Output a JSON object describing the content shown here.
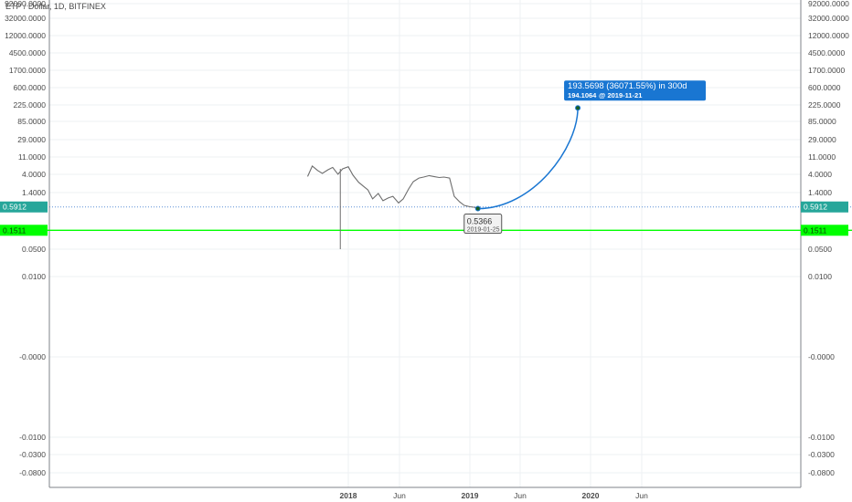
{
  "header": {
    "title": "ETP / Dollar, 1D, BITFINEX"
  },
  "chart_data": {
    "type": "line",
    "title": "ETP / Dollar, 1D, BITFINEX",
    "y_scale": "log",
    "y_tick_labels": [
      "92000.0000",
      "32000.0000",
      "12000.0000",
      "4500.0000",
      "1700.0000",
      "600.0000",
      "225.0000",
      "85.0000",
      "29.0000",
      "11.0000",
      "4.0000",
      "1.4000",
      "0.0500",
      "0.0100",
      "-0.0000",
      "-0.0100",
      "-0.0300",
      "-0.0800"
    ],
    "x_tick_labels": [
      "2018",
      "Jun",
      "2019",
      "Jun",
      "2020",
      "Jun"
    ],
    "grid": true,
    "series": [
      {
        "x": [
          "2017-09-01",
          "2017-09-15",
          "2017-10-01",
          "2017-10-15",
          "2017-11-01",
          "2017-11-15",
          "2017-12-01",
          "2017-12-15",
          "2018-01-01",
          "2018-01-15",
          "2018-02-01",
          "2018-02-15",
          "2018-03-01",
          "2018-03-15",
          "2018-04-01",
          "2018-04-15",
          "2018-05-01",
          "2018-05-15",
          "2018-06-01",
          "2018-06-15",
          "2018-07-01",
          "2018-07-15",
          "2018-08-01",
          "2018-08-15",
          "2018-09-01",
          "2018-09-15",
          "2018-10-01",
          "2018-10-15",
          "2018-11-01",
          "2018-11-15",
          "2018-12-01",
          "2018-12-15",
          "2019-01-01",
          "2019-01-15",
          "2019-01-25"
        ],
        "values": [
          3.5,
          6.5,
          5.0,
          4.2,
          5.2,
          6.0,
          4.0,
          5.5,
          6.2,
          3.8,
          2.5,
          2.0,
          1.6,
          0.95,
          1.3,
          0.85,
          1.0,
          1.1,
          0.75,
          0.95,
          1.7,
          2.6,
          3.2,
          3.4,
          3.7,
          3.5,
          3.3,
          3.4,
          3.2,
          1.1,
          0.8,
          0.65,
          0.6,
          0.58,
          0.5366
        ]
      }
    ],
    "wick_low": {
      "x": "2017-12-08",
      "value": 0.05
    },
    "price_lines": [
      {
        "label": "0.5912",
        "value": 0.5912,
        "color": "#26a69a"
      },
      {
        "label": "0.1511",
        "value": 0.1511,
        "color": "#00ff00"
      }
    ],
    "projection": {
      "start": {
        "x": "2019-01-25",
        "value": 0.5366,
        "value_label": "0.5366",
        "date_label": "2019-01-25"
      },
      "end": {
        "x": "2019-11-21",
        "value": 194.1064
      },
      "label_line1": "193.5698 (36071.55%) in 300d",
      "label_line2": "194.1064",
      "label_line2_date": "@ 2019-11-21",
      "color": "#1976d2"
    }
  }
}
